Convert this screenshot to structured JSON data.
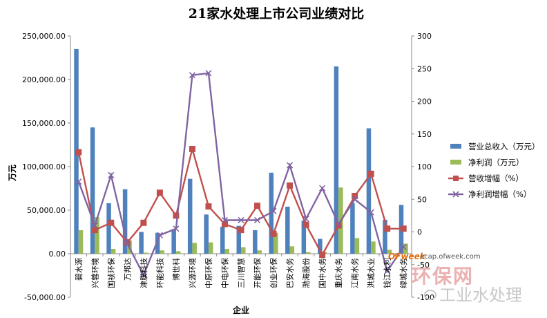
{
  "chart_data": {
    "type": "bar",
    "title": "21家水处理上市公司业绩对比",
    "xlabel": "企业",
    "ylabel": "万元",
    "ylim": [
      -50000,
      250000
    ],
    "y_ticks": [
      "250,000.00",
      "200,000.00",
      "150,000.00",
      "100,000.00",
      "50,000.00",
      "0.00",
      "-50,000.00"
    ],
    "y2lim": [
      -100,
      300
    ],
    "y2_ticks": [
      "300",
      "250",
      "200",
      "150",
      "100",
      "50",
      "0",
      "-50",
      "-100"
    ],
    "grid": false,
    "legend_position": "right",
    "categories": [
      "碧水源",
      "兴蓉环境",
      "国祯环保",
      "万邦达",
      "津膜科技",
      "环能科技",
      "博世科",
      "兴源环境",
      "中原环保",
      "中电环保",
      "三川智慧",
      "开能环保",
      "创业环保",
      "巴安水务",
      "渤海股份",
      "国中水务",
      "重庆水务",
      "江南水务",
      "洪城水业",
      "钱江水利",
      "绿城水务"
    ],
    "series": [
      {
        "name": "营业总收入（万元）",
        "axis": "left",
        "kind": "bar",
        "color": "#4f81bd",
        "values": [
          235000,
          145000,
          58000,
          74000,
          25000,
          24000,
          28000,
          86000,
          45000,
          31000,
          32000,
          27000,
          93000,
          54000,
          38000,
          17000,
          215000,
          58000,
          144000,
          39000,
          56000
        ]
      },
      {
        "name": "净利润（万元）",
        "axis": "left",
        "kind": "bar",
        "color": "#9bbb59",
        "values": [
          27000,
          42000,
          5500,
          15000,
          1200,
          3800,
          2800,
          12500,
          13000,
          5500,
          7500,
          3800,
          24000,
          8500,
          1800,
          1800,
          76000,
          18000,
          14000,
          4500,
          11500
        ]
      },
      {
        "name": "营收增幅（%）",
        "axis": "right",
        "kind": "line",
        "marker": "square",
        "color": "#c0504d",
        "values": [
          122,
          3,
          14,
          -16,
          14,
          60,
          25,
          127,
          39,
          12,
          3,
          40,
          -3,
          71,
          11,
          -35,
          10,
          55,
          89,
          5,
          5
        ]
      },
      {
        "name": "净利润增幅（%）",
        "axis": "right",
        "kind": "line",
        "marker": "x",
        "color": "#8064a2",
        "values": [
          77,
          10,
          87,
          -18,
          -66,
          -5,
          5,
          240,
          243,
          18,
          18,
          18,
          32,
          102,
          20,
          67,
          12,
          50,
          30,
          -60,
          -23
        ]
      }
    ]
  },
  "watermarks": {
    "site_logo": "OFweek",
    "site_url": "ecap.ofweek.com",
    "site_name": "环保网",
    "account_name": "工业水处理"
  }
}
